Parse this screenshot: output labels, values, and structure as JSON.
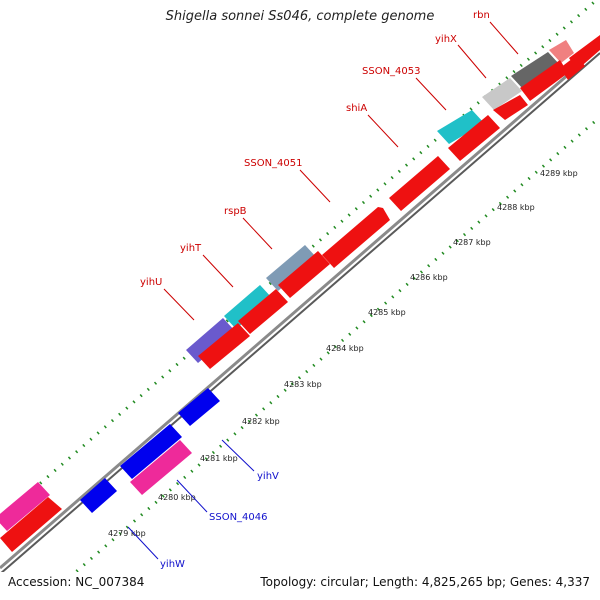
{
  "title": "Shigella sonnei Ss046, complete genome",
  "footer": {
    "accession": "Accession: NC_007384",
    "topology": "Topology: circular; Length: 4,825,265 bp; Genes: 4,337"
  },
  "colors": {
    "forward_gene": "#ff0000",
    "reverse_gene": "#0000ee",
    "label_forward": "#cc0000",
    "label_reverse": "#1010cc",
    "tick": "#228b22",
    "backbone": "#7a7a7a"
  },
  "scale_labels": [
    {
      "text": "4279 kbp"
    },
    {
      "text": "4280 kbp"
    },
    {
      "text": "4281 kbp"
    },
    {
      "text": "4282 kbp"
    },
    {
      "text": "4283 kbp"
    },
    {
      "text": "4284 kbp"
    },
    {
      "text": "4285 kbp"
    },
    {
      "text": "4286 kbp"
    },
    {
      "text": "4287 kbp"
    },
    {
      "text": "4288 kbp"
    },
    {
      "text": "4289 kbp"
    }
  ],
  "gene_labels_forward": [
    {
      "text": "yihU"
    },
    {
      "text": "yihT"
    },
    {
      "text": "rspB"
    },
    {
      "text": "SSON_4051"
    },
    {
      "text": "shiA"
    },
    {
      "text": "SSON_4053"
    },
    {
      "text": "yihX"
    },
    {
      "text": "rbn"
    }
  ],
  "gene_labels_reverse": [
    {
      "text": "yihV"
    },
    {
      "text": "SSON_4046"
    },
    {
      "text": "yihW"
    }
  ]
}
